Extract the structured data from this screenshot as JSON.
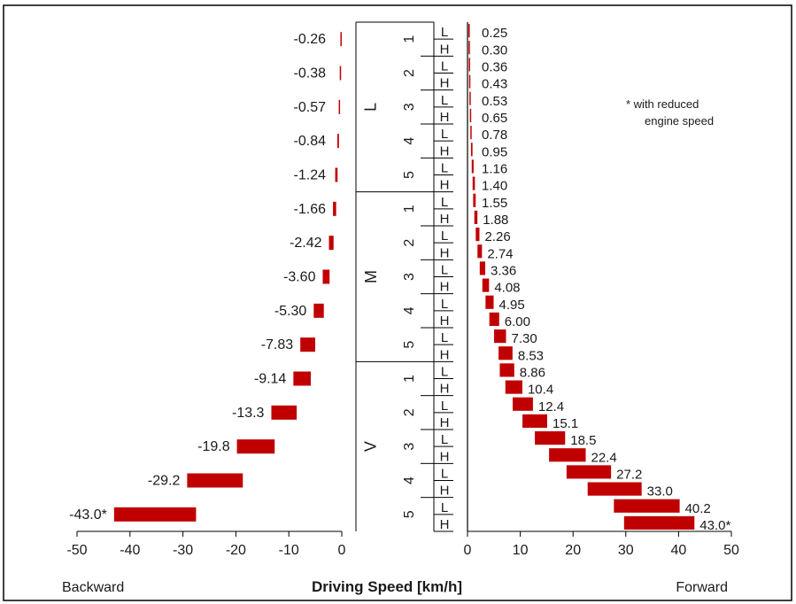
{
  "chart_data": {
    "type": "bar",
    "xlabel": "Driving Speed [km/h]",
    "backward_label": "Backward",
    "forward_label": "Forward",
    "note_line1": "* with reduced",
    "note_line2": "engine speed",
    "colors": {
      "bar": "#c00000",
      "axis": "#000000",
      "border": "#000000"
    },
    "backward_axis": {
      "xlim": [
        -50,
        0
      ],
      "ticks": [
        -50,
        -40,
        -30,
        -20,
        -10,
        0
      ],
      "tick_labels": [
        "-50",
        "-40",
        "-30",
        "-20",
        "-10",
        "0"
      ]
    },
    "forward_axis": {
      "xlim": [
        0,
        50
      ],
      "ticks": [
        0,
        10,
        20,
        30,
        40,
        50
      ],
      "tick_labels": [
        "0",
        "10",
        "20",
        "30",
        "40",
        "50"
      ]
    },
    "ranges": [
      {
        "label": "L",
        "gears": [
          "1",
          "2",
          "3",
          "4",
          "5"
        ]
      },
      {
        "label": "M",
        "gears": [
          "1",
          "2",
          "3",
          "4",
          "5"
        ]
      },
      {
        "label": "V",
        "gears": [
          "1",
          "2",
          "3",
          "4",
          "5"
        ]
      }
    ],
    "split_labels": [
      "L",
      "H"
    ],
    "backward": [
      {
        "value": -0.26,
        "label": "-0.26"
      },
      {
        "value": -0.38,
        "label": "-0.38"
      },
      {
        "value": -0.57,
        "label": "-0.57"
      },
      {
        "value": -0.84,
        "label": "-0.84"
      },
      {
        "value": -1.24,
        "label": "-1.24"
      },
      {
        "value": -1.66,
        "label": "-1.66"
      },
      {
        "value": -2.42,
        "label": "-2.42"
      },
      {
        "value": -3.6,
        "label": "-3.60"
      },
      {
        "value": -5.3,
        "label": "-5.30"
      },
      {
        "value": -7.83,
        "label": "-7.83"
      },
      {
        "value": -9.14,
        "label": "-9.14"
      },
      {
        "value": -13.3,
        "label": "-13.3"
      },
      {
        "value": -19.8,
        "label": "-19.8"
      },
      {
        "value": -29.2,
        "label": "-29.2"
      },
      {
        "value": -43.0,
        "label": "-43.0*"
      }
    ],
    "forward": [
      {
        "value": 0.25,
        "label": "0.25"
      },
      {
        "value": 0.3,
        "label": "0.30"
      },
      {
        "value": 0.36,
        "label": "0.36"
      },
      {
        "value": 0.43,
        "label": "0.43"
      },
      {
        "value": 0.53,
        "label": "0.53"
      },
      {
        "value": 0.65,
        "label": "0.65"
      },
      {
        "value": 0.78,
        "label": "0.78"
      },
      {
        "value": 0.95,
        "label": "0.95"
      },
      {
        "value": 1.16,
        "label": "1.16"
      },
      {
        "value": 1.4,
        "label": "1.40"
      },
      {
        "value": 1.55,
        "label": "1.55"
      },
      {
        "value": 1.88,
        "label": "1.88"
      },
      {
        "value": 2.26,
        "label": "2.26"
      },
      {
        "value": 2.74,
        "label": "2.74"
      },
      {
        "value": 3.36,
        "label": "3.36"
      },
      {
        "value": 4.08,
        "label": "4.08"
      },
      {
        "value": 4.95,
        "label": "4.95"
      },
      {
        "value": 6.0,
        "label": "6.00"
      },
      {
        "value": 7.3,
        "label": "7.30"
      },
      {
        "value": 8.53,
        "label": "8.53"
      },
      {
        "value": 8.86,
        "label": "8.86"
      },
      {
        "value": 10.4,
        "label": "10.4"
      },
      {
        "value": 12.4,
        "label": "12.4"
      },
      {
        "value": 15.1,
        "label": "15.1"
      },
      {
        "value": 18.5,
        "label": "18.5"
      },
      {
        "value": 22.4,
        "label": "22.4"
      },
      {
        "value": 27.2,
        "label": "27.2"
      },
      {
        "value": 33.0,
        "label": "33.0"
      },
      {
        "value": 40.2,
        "label": "40.2"
      },
      {
        "value": 43.0,
        "label": "43.0*"
      }
    ]
  }
}
